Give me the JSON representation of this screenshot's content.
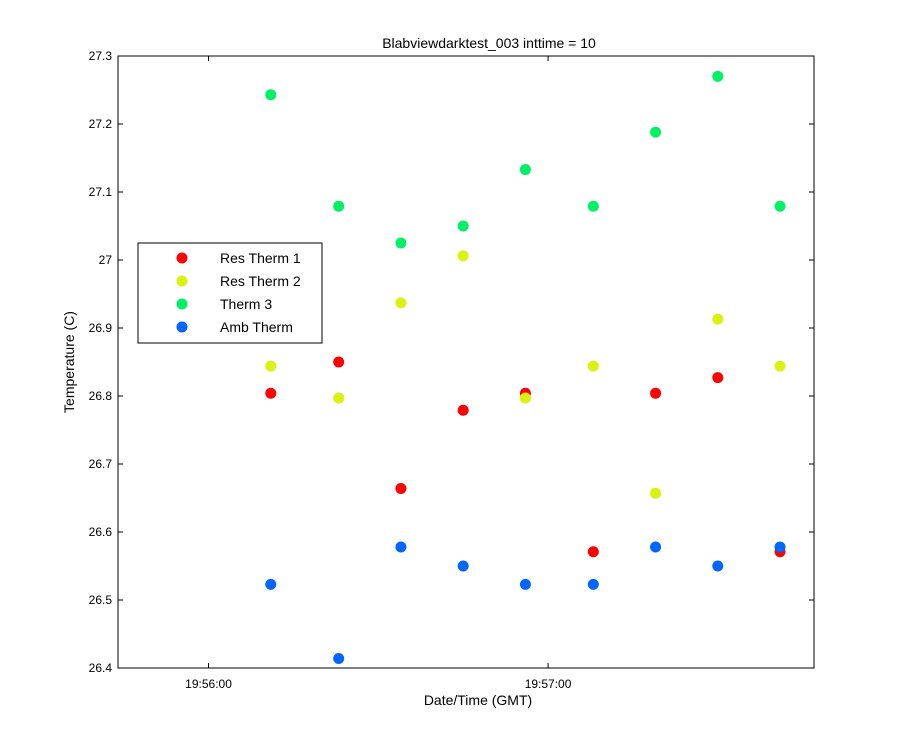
{
  "chart_data": {
    "type": "scatter",
    "title": "Blabviewdarktest_003 inttime = 10",
    "xlabel": "Date/Time (GMT)",
    "ylabel": "Temperature (C)",
    "x_unit": "time of day (GMT)",
    "xlim": [
      "19:55:44",
      "19:57:47"
    ],
    "ylim": [
      26.4,
      27.3
    ],
    "x_ticks": [
      "19:56:00",
      "19:57:00"
    ],
    "y_ticks": [
      26.4,
      26.5,
      26.6,
      26.7,
      26.8,
      26.9,
      27,
      27.1,
      27.2,
      27.3
    ],
    "grid": false,
    "legend_position": "left-middle",
    "x": [
      "19:56:11",
      "19:56:23",
      "19:56:34",
      "19:56:45",
      "19:56:56",
      "19:57:08",
      "19:57:19",
      "19:57:30",
      "19:57:41"
    ],
    "series": [
      {
        "name": "Res Therm 1",
        "color": "#ff0000",
        "values": [
          26.804,
          26.85,
          26.664,
          26.779,
          26.804,
          26.571,
          26.804,
          26.827,
          26.571
        ]
      },
      {
        "name": "Res Therm 2",
        "color": "#d9f20f",
        "values": [
          26.844,
          26.797,
          26.937,
          27.006,
          26.797,
          26.844,
          26.657,
          26.913,
          26.844
        ]
      },
      {
        "name": "Therm 3",
        "color": "#00f066",
        "values": [
          27.243,
          27.079,
          27.025,
          27.05,
          27.133,
          27.079,
          27.188,
          27.27,
          27.079
        ]
      },
      {
        "name": "Amb Therm",
        "color": "#0066ff",
        "values": [
          26.523,
          26.414,
          26.578,
          26.55,
          26.523,
          26.523,
          26.578,
          26.55,
          26.578
        ]
      }
    ]
  }
}
